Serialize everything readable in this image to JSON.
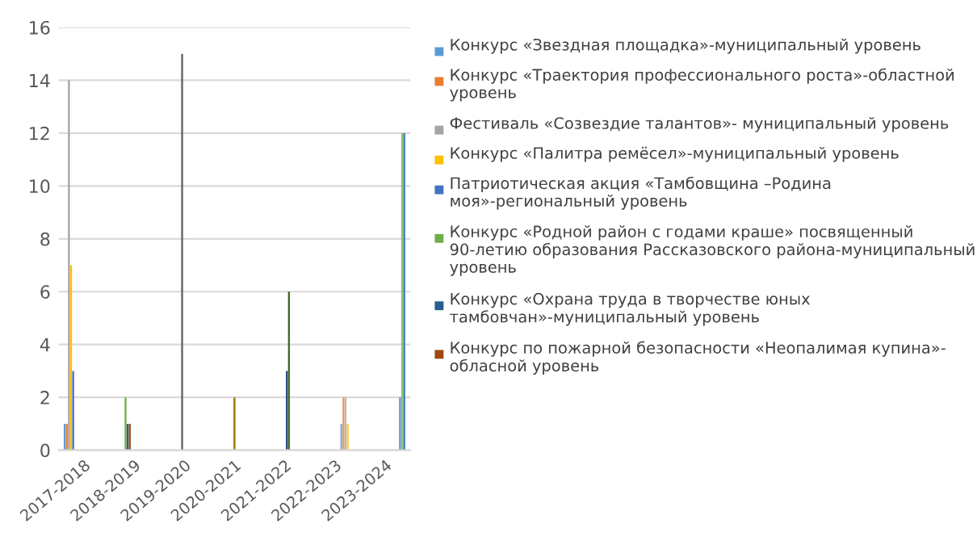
{
  "chart_data": {
    "type": "bar",
    "categories": [
      "2017-2018",
      "2018-2019",
      "2019-2020",
      "2020-2021",
      "2021-2022",
      "2022-2023",
      "2023-2024"
    ],
    "ylim": [
      0,
      16
    ],
    "yticks": [
      0,
      2,
      4,
      6,
      8,
      10,
      12,
      14,
      16
    ],
    "grid": "y",
    "legend": "right",
    "series": [
      {
        "name": "Конкурс «Звездная площадка»-муниципальный уровень",
        "color": "#5b9bd5",
        "values": [
          1,
          null,
          null,
          null,
          null,
          null,
          null
        ]
      },
      {
        "name": "Конкурс «Траектория профессионального роста»-областной уровень",
        "color": "#ed7d31",
        "values": [
          1,
          null,
          null,
          null,
          null,
          null,
          null
        ]
      },
      {
        "name": "Фестиваль «Созвездие талантов»- муниципальный уровень",
        "color": "#a5a5a5",
        "values": [
          14,
          null,
          null,
          null,
          null,
          null,
          null
        ]
      },
      {
        "name": "Конкурс «Палитра ремёсел»-муниципальный уровень",
        "color": "#ffc000",
        "values": [
          7,
          null,
          null,
          null,
          null,
          null,
          null
        ]
      },
      {
        "name": "Патриотическая акция «Тамбовщина –Родина моя»-региональный уровень",
        "color": "#4472c4",
        "values": [
          3,
          null,
          null,
          null,
          null,
          null,
          null
        ]
      },
      {
        "name": "Конкурс «Родной район с годами краше» посвященный 90-летию образования Рассказовского района-муниципальный уровень",
        "color": "#70ad47",
        "values": [
          null,
          2,
          null,
          null,
          null,
          null,
          null
        ]
      },
      {
        "name": "Конкурс «Охрана труда в творчестве юных тамбовчан»-муниципальный уровень",
        "color": "#255e91",
        "values": [
          null,
          1,
          null,
          null,
          null,
          null,
          null
        ]
      },
      {
        "name": "Конкурс по пожарной безопасности «Неопалимая купина»- обласной уровень",
        "color": "#9e480e",
        "values": [
          null,
          1,
          null,
          null,
          null,
          null,
          null
        ]
      },
      {
        "color": "#636363",
        "values": [
          null,
          null,
          15,
          null,
          null,
          null,
          null
        ]
      },
      {
        "color": "#997300",
        "values": [
          null,
          null,
          null,
          2,
          null,
          null,
          null
        ]
      },
      {
        "color": "#264478",
        "values": [
          null,
          null,
          null,
          null,
          3,
          null,
          null
        ]
      },
      {
        "color": "#43682b",
        "values": [
          null,
          null,
          null,
          null,
          6,
          null,
          null
        ]
      },
      {
        "color": "#7cafdd",
        "values": [
          null,
          null,
          null,
          null,
          null,
          1,
          null
        ]
      },
      {
        "color": "#f1975a",
        "values": [
          null,
          null,
          null,
          null,
          null,
          2,
          null
        ]
      },
      {
        "color": "#b7b7b7",
        "values": [
          null,
          null,
          null,
          null,
          null,
          2,
          null
        ]
      },
      {
        "color": "#ffcd33",
        "values": [
          null,
          null,
          null,
          null,
          null,
          1,
          null
        ]
      },
      {
        "color": "#698ed0",
        "values": [
          null,
          null,
          null,
          null,
          null,
          null,
          2
        ]
      },
      {
        "color": "#8cc168",
        "values": [
          null,
          null,
          null,
          null,
          null,
          null,
          12
        ]
      },
      {
        "color": "#327dc2",
        "values": [
          null,
          null,
          null,
          null,
          null,
          null,
          12
        ]
      }
    ]
  }
}
